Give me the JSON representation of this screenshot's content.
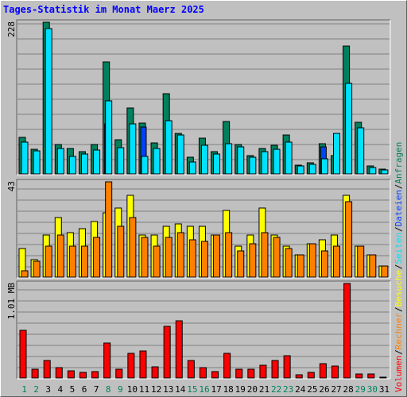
{
  "chart_data": {
    "type": "bar",
    "title": "Tages-Statistik im Monat Maerz 2025",
    "categories": [
      "1",
      "2",
      "3",
      "4",
      "5",
      "6",
      "7",
      "8",
      "9",
      "10",
      "11",
      "12",
      "13",
      "14",
      "15",
      "16",
      "17",
      "18",
      "19",
      "20",
      "21",
      "22",
      "23",
      "24",
      "25",
      "26",
      "27",
      "28",
      "29",
      "30",
      "31"
    ],
    "weekend_days": [
      1,
      2,
      8,
      9,
      15,
      16,
      22,
      23,
      29,
      30
    ],
    "weekday_label_color": "#000000",
    "weekend_label_color": "#00805c",
    "panels": [
      {
        "max_label": "228",
        "ymax": 228,
        "series": [
          {
            "name": "Anfragen",
            "color": "#00805c",
            "values": [
              55,
              37,
              228,
              44,
              38,
              34,
              44,
              168,
              51,
              99,
              76,
              47,
              120,
              61,
              25,
              54,
              34,
              79,
              44,
              28,
              38,
              43,
              59,
              13,
              17,
              45,
              27,
              192,
              78,
              12,
              7
            ]
          },
          {
            "name": "Seiten",
            "color": "#00e0ff",
            "values": [
              48,
              35,
              218,
              38,
              26,
              30,
              36,
              110,
              39,
              75,
              26,
              38,
              80,
              59,
              18,
              43,
              30,
              45,
              40,
              25,
              33,
              37,
              48,
              12,
              14,
              23,
              61,
              136,
              69,
              10,
              6
            ]
          },
          {
            "name": "Dateien",
            "color": "#0040ff",
            "values": [
              0,
              0,
              0,
              0,
              0,
              0,
              0,
              75,
              0,
              0,
              70,
              0,
              0,
              0,
              0,
              0,
              0,
              0,
              0,
              0,
              0,
              0,
              0,
              0,
              0,
              40,
              0,
              0,
              0,
              0,
              0
            ]
          }
        ]
      },
      {
        "max_label": "43",
        "ymax": 43,
        "series": [
          {
            "name": "Besuche",
            "color": "#ffff00",
            "values": [
              13,
              8,
              19,
              27,
              20,
              22,
              25,
              29,
              31,
              37,
              19,
              19,
              23,
              24,
              23,
              23,
              19,
              30,
              14,
              19,
              31,
              19,
              14,
              10,
              15,
              17,
              19,
              37,
              14,
              10,
              5
            ]
          },
          {
            "name": "Rechner",
            "color": "#ff8000",
            "values": [
              3,
              7,
              14,
              19,
              14,
              14,
              18,
              43,
              23,
              27,
              18,
              14,
              18,
              20,
              17,
              16,
              19,
              20,
              12,
              15,
              20,
              18,
              13,
              10,
              15,
              12,
              14,
              34,
              14,
              10,
              5
            ]
          }
        ]
      },
      {
        "max_label": "1.01 MB",
        "ymax": 1.01,
        "series": [
          {
            "name": "Volumen",
            "color": "#ff0000",
            "values": [
              0.51,
              0.09,
              0.19,
              0.11,
              0.08,
              0.06,
              0.07,
              0.37,
              0.09,
              0.26,
              0.29,
              0.12,
              0.55,
              0.61,
              0.19,
              0.11,
              0.07,
              0.26,
              0.09,
              0.09,
              0.14,
              0.19,
              0.24,
              0.03,
              0.06,
              0.15,
              0.13,
              1.01,
              0.04,
              0.04,
              0.01
            ]
          }
        ]
      }
    ],
    "right_legend": [
      {
        "text": "Anfragen",
        "color": "#00805c"
      },
      {
        "text": "Dateien",
        "color": "#0040ff"
      },
      {
        "text": "Seiten",
        "color": "#00e0ff"
      },
      {
        "text": "Besuche",
        "color": "#ffff00"
      },
      {
        "text": "Rechner",
        "color": "#ff8000"
      },
      {
        "text": "Volumen",
        "color": "#ff0000"
      }
    ],
    "separator_color": "#000000",
    "background_color": "#c0c0c0",
    "grid_color": "#808080",
    "grid": true
  }
}
